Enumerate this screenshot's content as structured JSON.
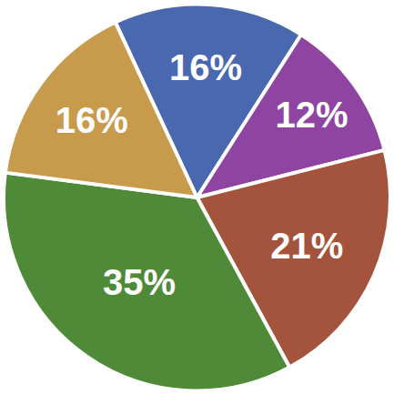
{
  "chart_data": {
    "type": "pie",
    "values": [
      16,
      12,
      21,
      35,
      16
    ],
    "value_labels": [
      "16%",
      "12%",
      "21%",
      "35%",
      "16%"
    ],
    "colors": [
      "#4a68b0",
      "#8e44a0",
      "#a4533c",
      "#4f8a38",
      "#c79a4c"
    ],
    "data_labels": true
  }
}
